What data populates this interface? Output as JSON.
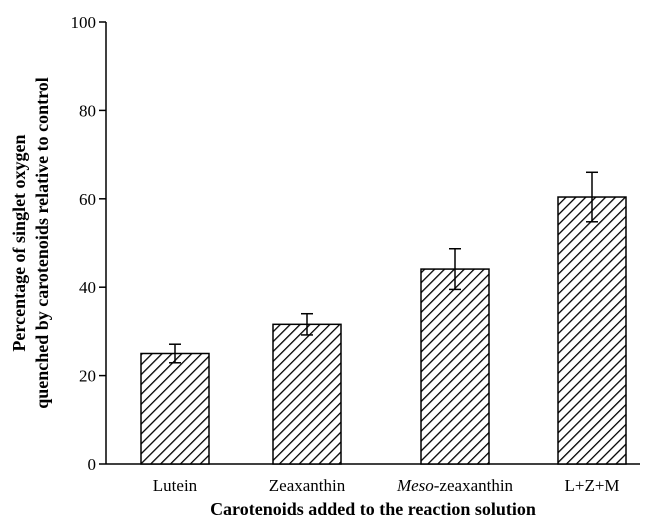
{
  "chart_data": {
    "type": "bar",
    "categories": [
      "Lutein",
      "Zeaxanthin",
      "Meso-zeaxanthin",
      "L+Z+M"
    ],
    "category_parts": [
      {
        "italic": "",
        "rest": "Lutein"
      },
      {
        "italic": "",
        "rest": "Zeaxanthin"
      },
      {
        "italic": "Meso",
        "rest": "-zeaxanthin"
      },
      {
        "italic": "",
        "rest": "L+Z+M"
      }
    ],
    "values": [
      25.0,
      31.6,
      44.1,
      60.4
    ],
    "error": [
      2.1,
      2.4,
      4.6,
      5.6
    ],
    "xlabel": "Carotenoids added to the reaction solution",
    "ylabel_line1": "Percentage of singlet oxygen",
    "ylabel_line2": "quenched by carotenoids relative to control",
    "ylim": [
      0,
      100
    ],
    "yticks": [
      0,
      20,
      40,
      60,
      80,
      100
    ],
    "grid": false,
    "bar_fill": "diagonal-hatch",
    "colors": {
      "bar_stroke": "#000000",
      "hatch": "#000000",
      "background": "#ffffff"
    }
  }
}
